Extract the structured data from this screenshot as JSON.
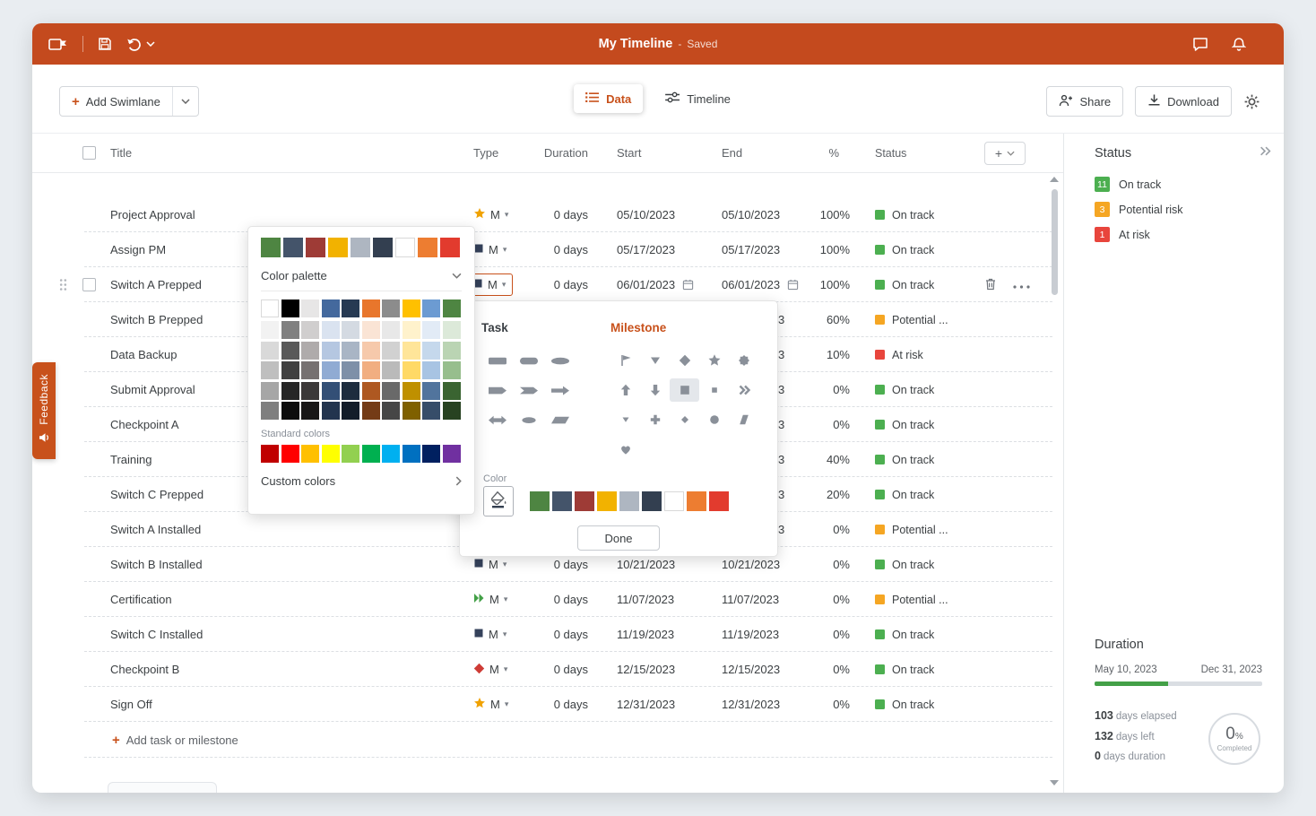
{
  "topbar": {
    "title": "My Timeline",
    "dash": "-",
    "saved": "Saved"
  },
  "toolbar": {
    "add_swimlane_plus": "+",
    "add_swimlane_label": "Add Swimlane",
    "tabs": {
      "data": "Data",
      "timeline": "Timeline"
    },
    "share_label": "Share",
    "download_label": "Download"
  },
  "table": {
    "headers": {
      "title": "Title",
      "type": "Type",
      "duration": "Duration",
      "start": "Start",
      "end": "End",
      "percent": "%",
      "status": "Status"
    },
    "add_column_plus": "+",
    "add_row_plus": "+",
    "add_row_label": "Add task or milestone",
    "rows": [
      {
        "title": "Project Approval",
        "shape": "star",
        "shape_color": "#F0A202",
        "type_label": "M",
        "duration": "0 days",
        "start": "05/10/2023",
        "end": "05/10/2023",
        "percent": "100%",
        "status": "On track",
        "status_color": "#4CAF50"
      },
      {
        "title": "Assign PM",
        "shape": "square",
        "shape_color": "#35425B",
        "type_label": "M",
        "duration": "0 days",
        "start": "05/17/2023",
        "end": "05/17/2023",
        "percent": "100%",
        "status": "On track",
        "status_color": "#4CAF50"
      },
      {
        "title": "Switch A Prepped",
        "selected": true,
        "show_calendars": true,
        "shape": "square",
        "shape_color": "#35425B",
        "type_label": "M",
        "duration": "0 days",
        "start": "06/01/2023",
        "end": "06/01/2023",
        "percent": "100%",
        "status": "On track",
        "status_color": "#4CAF50"
      },
      {
        "title": "Switch B Prepped",
        "covered": true,
        "end_fragment": "3",
        "percent": "60%",
        "status": "Potential ...",
        "status_color": "#F5A623"
      },
      {
        "title": "Data Backup",
        "covered": true,
        "end_fragment": "3",
        "percent": "10%",
        "status": "At risk",
        "status_color": "#E8453C"
      },
      {
        "title": "Submit Approval",
        "covered": true,
        "end_fragment": "3",
        "percent": "0%",
        "status": "On track",
        "status_color": "#4CAF50"
      },
      {
        "title": "Checkpoint A",
        "covered": true,
        "end_fragment": "3",
        "percent": "0%",
        "status": "On track",
        "status_color": "#4CAF50"
      },
      {
        "title": "Training",
        "covered": true,
        "end_fragment": "3",
        "percent": "40%",
        "status": "On track",
        "status_color": "#4CAF50"
      },
      {
        "title": "Switch C Prepped",
        "covered": true,
        "end_fragment": "3",
        "percent": "20%",
        "status": "On track",
        "status_color": "#4CAF50"
      },
      {
        "title": "Switch A Installed",
        "covered": true,
        "end_fragment": "3",
        "percent": "0%",
        "status": "Potential ...",
        "status_color": "#F5A623"
      },
      {
        "title": "Switch B Installed",
        "shape": "square",
        "shape_color": "#35425B",
        "type_label": "M",
        "duration": "0 days",
        "start": "10/21/2023",
        "end": "10/21/2023",
        "percent": "0%",
        "status": "On track",
        "status_color": "#4CAF50"
      },
      {
        "title": "Certification",
        "shape": "chevrons",
        "shape_color": "#43A047",
        "type_label": "M",
        "duration": "0 days",
        "start": "11/07/2023",
        "end": "11/07/2023",
        "percent": "0%",
        "status": "Potential ...",
        "status_color": "#F5A623"
      },
      {
        "title": "Switch C Installed",
        "shape": "square",
        "shape_color": "#35425B",
        "type_label": "M",
        "duration": "0 days",
        "start": "11/19/2023",
        "end": "11/19/2023",
        "percent": "0%",
        "status": "On track",
        "status_color": "#4CAF50"
      },
      {
        "title": "Checkpoint B",
        "shape": "diamond",
        "shape_color": "#CE3C36",
        "type_label": "M",
        "duration": "0 days",
        "start": "12/15/2023",
        "end": "12/15/2023",
        "percent": "0%",
        "status": "On track",
        "status_color": "#4CAF50"
      },
      {
        "title": "Sign Off",
        "shape": "star",
        "shape_color": "#F0A202",
        "type_label": "M",
        "duration": "0 days",
        "start": "12/31/2023",
        "end": "12/31/2023",
        "percent": "0%",
        "status": "On track",
        "status_color": "#4CAF50"
      }
    ]
  },
  "color_popup": {
    "quick_colors": [
      "#4E8542",
      "#44546A",
      "#9E3B36",
      "#F2B200",
      "#AEB6C1",
      "#333F50",
      "#FFFFFF",
      "#ED7D31",
      "#E23B2E"
    ],
    "palette_label": "Color palette",
    "theme_grid": [
      [
        "#FFFFFF",
        "#000000",
        "#E7E6E6",
        "#44699D",
        "#273A53",
        "#E8762C",
        "#8C8C8C",
        "#FFC000",
        "#6C9BD2",
        "#4E8542"
      ],
      [
        "#F2F2F2",
        "#808080",
        "#D0CECE",
        "#DAE3F0",
        "#D4DAE2",
        "#FAE4D5",
        "#E8E8E8",
        "#FFF2CC",
        "#E2EBF6",
        "#DCE9D9"
      ],
      [
        "#D9D9D9",
        "#595959",
        "#AFABAB",
        "#B5C7E1",
        "#A9B5C5",
        "#F6C9AB",
        "#D1D1D1",
        "#FFE599",
        "#C5D8EC",
        "#BAD4B3"
      ],
      [
        "#BFBFBF",
        "#404040",
        "#767171",
        "#90ABD3",
        "#7E90A8",
        "#F1AE81",
        "#BABABA",
        "#FFD966",
        "#A8C4E3",
        "#97BE8D"
      ],
      [
        "#A6A6A6",
        "#262626",
        "#3B3838",
        "#334F76",
        "#1D2C3E",
        "#AE5821",
        "#696969",
        "#BF9000",
        "#51749D",
        "#3A6431"
      ],
      [
        "#7F7F7F",
        "#0D0D0D",
        "#181717",
        "#22344E",
        "#131D2A",
        "#743B16",
        "#464646",
        "#7F6000",
        "#364D69",
        "#274221"
      ]
    ],
    "standard_label": "Standard colors",
    "standard_colors": [
      "#C00000",
      "#FF0000",
      "#FFC000",
      "#FFFF00",
      "#92D050",
      "#00B050",
      "#00B0F0",
      "#0070C0",
      "#002060",
      "#7030A0"
    ],
    "custom_label": "Custom colors"
  },
  "shape_popup": {
    "task_label": "Task",
    "milestone_label": "Milestone",
    "task_shapes": [
      "rounded-rect",
      "rounded-rect2",
      "ellipse",
      "pentagon-arrow",
      "chevron-arrow",
      "arrow-right",
      "double-arrow",
      "ellipse-small",
      "parallelogram"
    ],
    "milestone_shapes": [
      "flag",
      "triangle-down",
      "diamond",
      "star",
      "seal",
      "arrow-up",
      "arrow-down",
      "square",
      "square-small",
      "chevrons-right",
      "triangle-down-small",
      "plus",
      "diamond-small",
      "circle",
      "slant-bar",
      "heart"
    ],
    "selected_shape": "square",
    "color_label": "Color",
    "colors": [
      "#4E8542",
      "#44546A",
      "#9E3B36",
      "#F2B200",
      "#AEB6C1",
      "#333F50",
      "#FFFFFF",
      "#ED7D31",
      "#E23B2E"
    ],
    "done_label": "Done"
  },
  "sidebar": {
    "status_heading": "Status",
    "legend": [
      {
        "count": "11",
        "label": "On track",
        "color": "#4CAF50"
      },
      {
        "count": "3",
        "label": "Potential risk",
        "color": "#F5A623"
      },
      {
        "count": "1",
        "label": "At risk",
        "color": "#E8453C"
      }
    ],
    "duration_heading": "Duration",
    "range_start": "May 10, 2023",
    "range_end": "Dec 31, 2023",
    "progress_percent": 44,
    "stats": [
      {
        "value": "103",
        "label": "days elapsed"
      },
      {
        "value": "132",
        "label": "days left"
      },
      {
        "value": "0",
        "label": "days duration"
      }
    ],
    "completed_value": "0",
    "completed_unit": "%",
    "completed_label": "Completed"
  },
  "feedback_label": "Feedback"
}
